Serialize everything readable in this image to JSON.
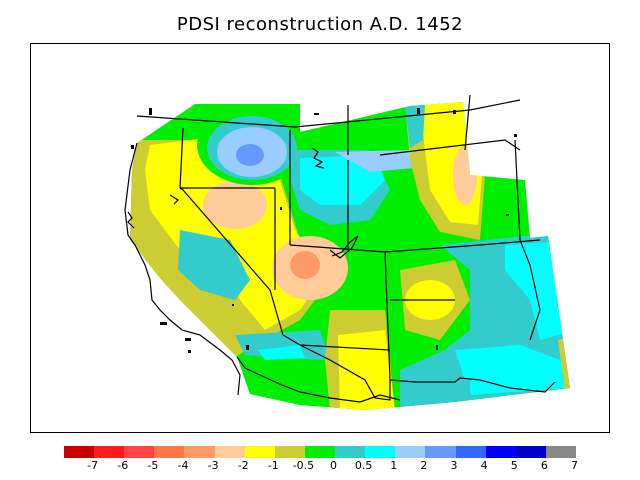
{
  "title": "PDSI reconstruction A.D. 1452",
  "legend": {
    "colors": [
      "#cc0000",
      "#ff1a1a",
      "#ff4444",
      "#ff7744",
      "#ff9966",
      "#ffcc99",
      "#ffff00",
      "#cccc33",
      "#00ee00",
      "#33cccc",
      "#00ffff",
      "#99ccff",
      "#6699ff",
      "#3366ff",
      "#0000ff",
      "#0000cc",
      "#888888"
    ],
    "labels": [
      "-7",
      "-6",
      "-5",
      "-4",
      "-3",
      "-2",
      "-1",
      "-0.5",
      "0",
      "0.5",
      "1",
      "2",
      "3",
      "4",
      "5",
      "6",
      "7"
    ]
  },
  "palette": {
    "dry_light": "#ffcc99",
    "dry_orange": "#ff9966",
    "yellow": "#ffff00",
    "olive": "#cccc33",
    "green": "#00ee00",
    "teal": "#33cccc",
    "cyan": "#00ffff",
    "light_blue": "#99ccff",
    "mid_blue": "#6699ff"
  }
}
